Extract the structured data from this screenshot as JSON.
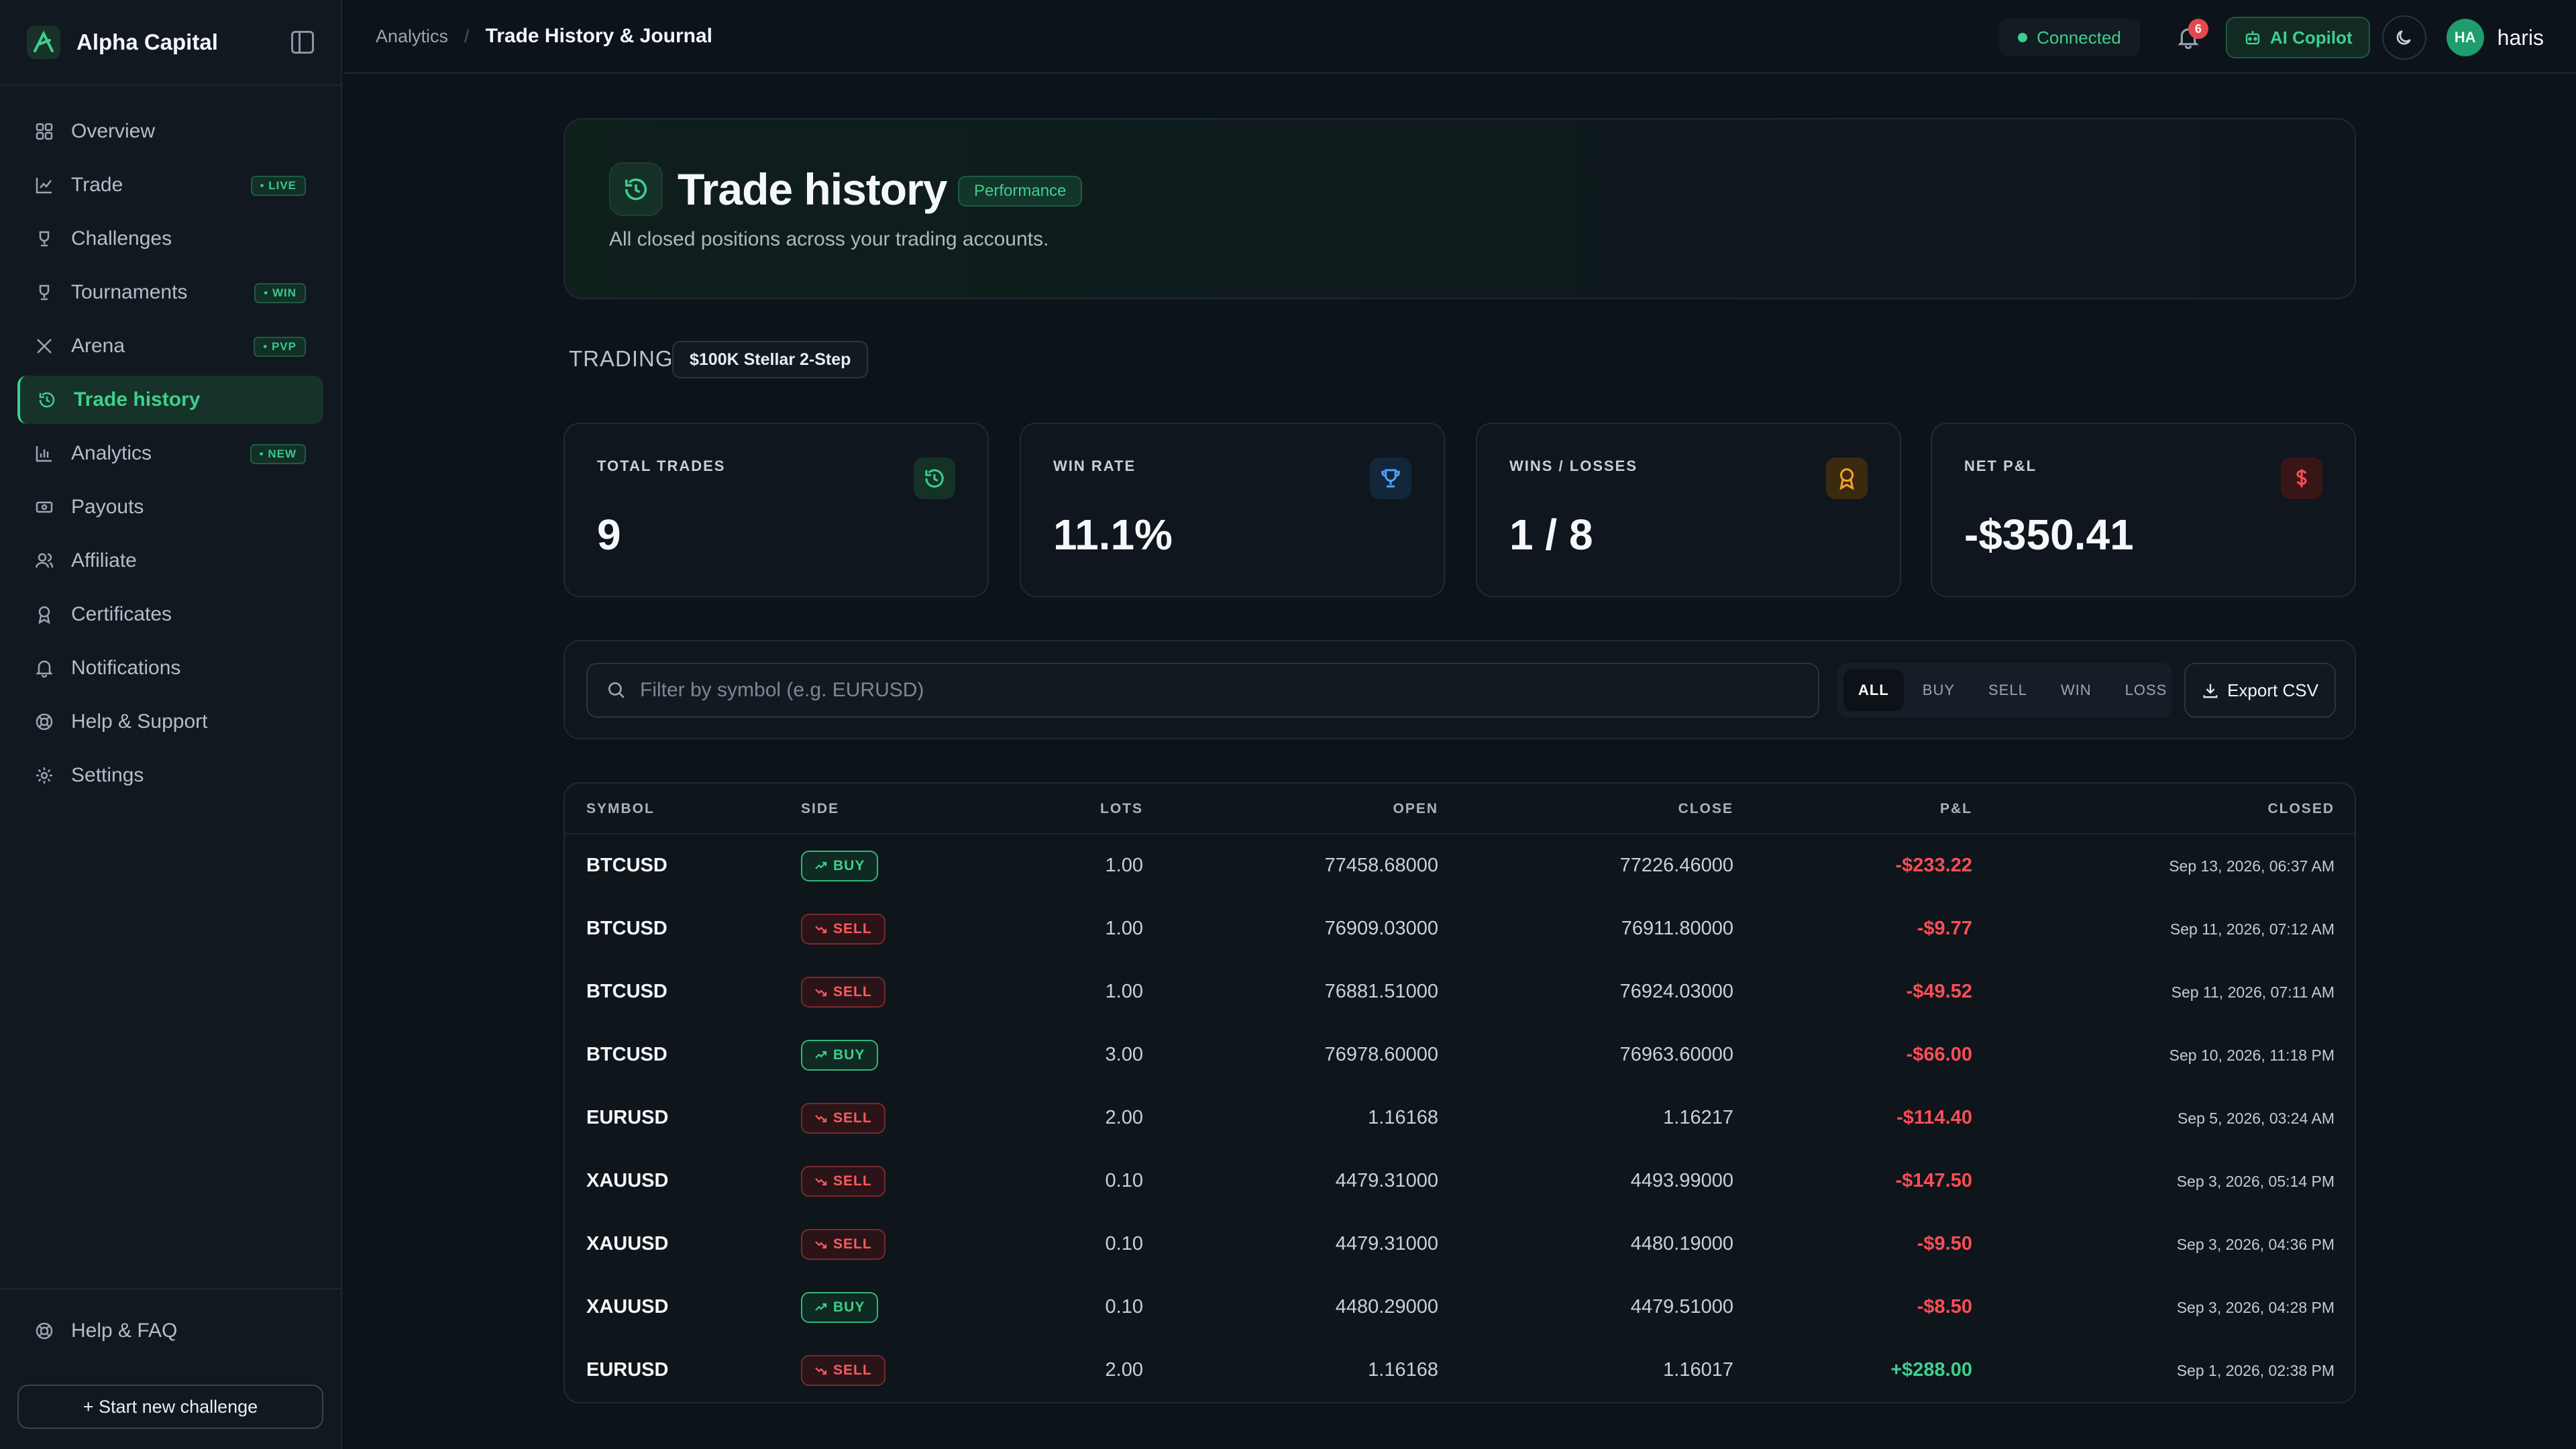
{
  "brand": {
    "name": "Alpha Capital"
  },
  "sidebar": {
    "items": [
      {
        "label": "Overview",
        "icon": "grid-icon",
        "badge": ""
      },
      {
        "label": "Trade",
        "icon": "chart-icon",
        "badge": "• LIVE"
      },
      {
        "label": "Challenges",
        "icon": "trophy-icon",
        "badge": ""
      },
      {
        "label": "Tournaments",
        "icon": "trophy-icon",
        "badge": "• WIN"
      },
      {
        "label": "Arena",
        "icon": "swords-icon",
        "badge": "• PVP"
      },
      {
        "label": "Trade history",
        "icon": "history-icon",
        "badge": "",
        "active": true
      },
      {
        "label": "Analytics",
        "icon": "bar-chart-icon",
        "badge": "• NEW"
      },
      {
        "label": "Payouts",
        "icon": "money-icon",
        "badge": ""
      },
      {
        "label": "Affiliate",
        "icon": "users-icon",
        "badge": ""
      },
      {
        "label": "Certificates",
        "icon": "award-icon",
        "badge": ""
      },
      {
        "label": "Notifications",
        "icon": "bell-icon",
        "badge": ""
      },
      {
        "label": "Help & Support",
        "icon": "lifebuoy-icon",
        "badge": ""
      },
      {
        "label": "Settings",
        "icon": "gear-icon",
        "badge": ""
      }
    ],
    "footer": {
      "help_faq": "Help & FAQ",
      "start_challenge": "+ Start new challenge"
    }
  },
  "header": {
    "breadcrumb_parent": "Analytics",
    "breadcrumb_separator": "/",
    "breadcrumb_current": "Trade History & Journal",
    "connection_status": "Connected",
    "notification_count": "6",
    "copilot_label": "AI Copilot",
    "avatar_initials": "HA",
    "username": "haris"
  },
  "hero": {
    "title": "Trade history",
    "badge": "Performance",
    "subtitle": "All closed positions across your trading accounts."
  },
  "trading": {
    "label": "TRADING",
    "account": "$100K Stellar 2-Step"
  },
  "stats": [
    {
      "label": "TOTAL TRADES",
      "value": "9",
      "icon": "history-icon",
      "color": "#3ecf8e"
    },
    {
      "label": "WIN RATE",
      "value": "11.1%",
      "icon": "trophy-icon",
      "color": "#4aa3ff"
    },
    {
      "label": "WINS / LOSSES",
      "value": "1 / 8",
      "icon": "award-icon",
      "color": "#f5a524"
    },
    {
      "label": "NET P&L",
      "value": "-$350.41",
      "icon": "dollar-icon",
      "color": "#ff4d55"
    }
  ],
  "filters": {
    "search_placeholder": "Filter by symbol (e.g. EURUSD)",
    "segments": [
      "ALL",
      "BUY",
      "SELL",
      "WIN",
      "LOSS"
    ],
    "active_segment": "ALL",
    "export_label": "Export CSV"
  },
  "table": {
    "columns": [
      "SYMBOL",
      "SIDE",
      "LOTS",
      "OPEN",
      "CLOSE",
      "P&L",
      "CLOSED"
    ],
    "rows": [
      {
        "symbol": "BTCUSD",
        "side": "BUY",
        "lots": "1.00",
        "open": "77458.68000",
        "close": "77226.46000",
        "pnl": "-$233.22",
        "closed": "Sep 13, 2026, 06:37 AM"
      },
      {
        "symbol": "BTCUSD",
        "side": "SELL",
        "lots": "1.00",
        "open": "76909.03000",
        "close": "76911.80000",
        "pnl": "-$9.77",
        "closed": "Sep 11, 2026, 07:12 AM"
      },
      {
        "symbol": "BTCUSD",
        "side": "SELL",
        "lots": "1.00",
        "open": "76881.51000",
        "close": "76924.03000",
        "pnl": "-$49.52",
        "closed": "Sep 11, 2026, 07:11 AM"
      },
      {
        "symbol": "BTCUSD",
        "side": "BUY",
        "lots": "3.00",
        "open": "76978.60000",
        "close": "76963.60000",
        "pnl": "-$66.00",
        "closed": "Sep 10, 2026, 11:18 PM"
      },
      {
        "symbol": "EURUSD",
        "side": "SELL",
        "lots": "2.00",
        "open": "1.16168",
        "close": "1.16217",
        "pnl": "-$114.40",
        "closed": "Sep 5, 2026, 03:24 AM"
      },
      {
        "symbol": "XAUUSD",
        "side": "SELL",
        "lots": "0.10",
        "open": "4479.31000",
        "close": "4493.99000",
        "pnl": "-$147.50",
        "closed": "Sep 3, 2026, 05:14 PM"
      },
      {
        "symbol": "XAUUSD",
        "side": "SELL",
        "lots": "0.10",
        "open": "4479.31000",
        "close": "4480.19000",
        "pnl": "-$9.50",
        "closed": "Sep 3, 2026, 04:36 PM"
      },
      {
        "symbol": "XAUUSD",
        "side": "BUY",
        "lots": "0.10",
        "open": "4480.29000",
        "close": "4479.51000",
        "pnl": "-$8.50",
        "closed": "Sep 3, 2026, 04:28 PM"
      },
      {
        "symbol": "EURUSD",
        "side": "SELL",
        "lots": "2.00",
        "open": "1.16168",
        "close": "1.16017",
        "pnl": "+$288.00",
        "closed": "Sep 1, 2026, 02:38 PM"
      }
    ]
  }
}
